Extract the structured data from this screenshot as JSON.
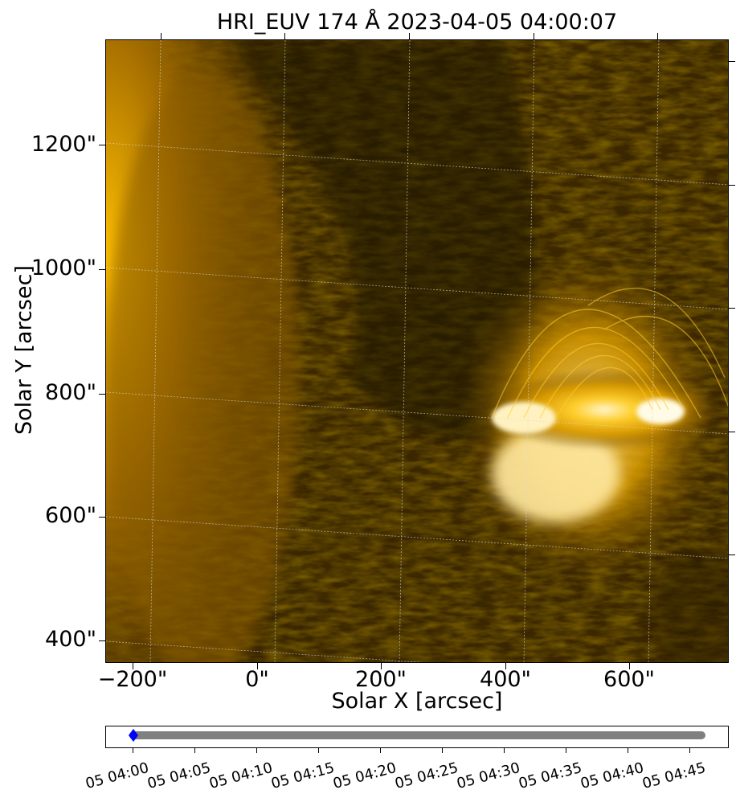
{
  "title": "HRI_EUV 174 Å 2023-04-05 04:00:07",
  "axes": {
    "xlabel": "Solar X [arcsec]",
    "ylabel": "Solar Y [arcsec]",
    "xticks": [
      "−200\"",
      "0\"",
      "200\"",
      "400\"",
      "600\""
    ],
    "yticks": [
      "1200\"",
      "1000\"",
      "800\"",
      "600\"",
      "400\""
    ]
  },
  "image": {
    "colormap": "solar-euv-174",
    "colors": {
      "dark": "#2a1a00",
      "mid": "#b07800",
      "bright": "#ffc800",
      "white": "#fff6d0",
      "grid": "#d9d9d9"
    },
    "grid": true
  },
  "timeline": {
    "labels": [
      "05 04:00",
      "05 04:05",
      "05 04:10",
      "05 04:15",
      "05 04:20",
      "05 04:25",
      "05 04:30",
      "05 04:35",
      "05 04:40",
      "05 04:45"
    ],
    "bar_color": "#808080",
    "marker_color": "#0000ff",
    "current_fraction": 0.0
  }
}
